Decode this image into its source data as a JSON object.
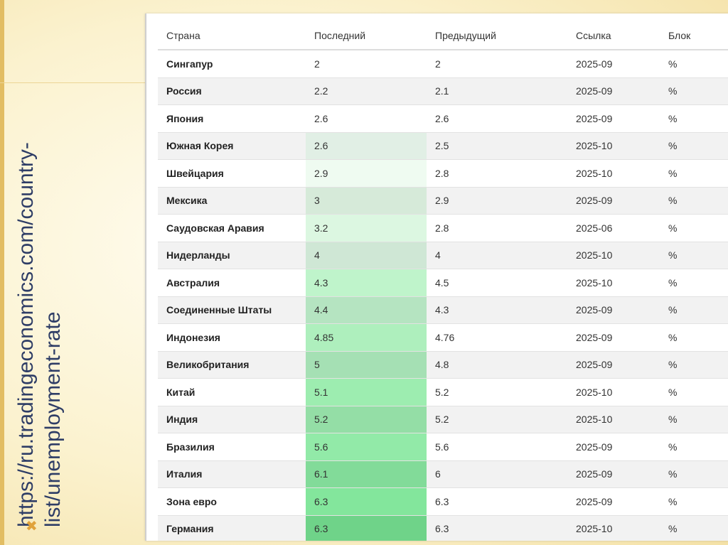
{
  "side_url": "https://ru.tradingeconomics.com/country-list/unemployment-rate",
  "table": {
    "headers": [
      "Страна",
      "Последний",
      "Предыдущий",
      "Ссылка",
      "Блок"
    ],
    "rows": [
      {
        "country": "Сингапур",
        "last": "2",
        "prev": "2",
        "ref": "2025-09",
        "unit": "%",
        "heat": "#ffffff"
      },
      {
        "country": "Россия",
        "last": "2.2",
        "prev": "2.1",
        "ref": "2025-09",
        "unit": "%",
        "heat": "#f2f2f2"
      },
      {
        "country": "Япония",
        "last": "2.6",
        "prev": "2.6",
        "ref": "2025-09",
        "unit": "%",
        "heat": "#ffffff"
      },
      {
        "country": "Южная Корея",
        "last": "2.6",
        "prev": "2.5",
        "ref": "2025-10",
        "unit": "%",
        "heat": "#e1efe5"
      },
      {
        "country": "Швейцария",
        "last": "2.9",
        "prev": "2.8",
        "ref": "2025-10",
        "unit": "%",
        "heat": "#effbf1"
      },
      {
        "country": "Мексика",
        "last": "3",
        "prev": "2.9",
        "ref": "2025-09",
        "unit": "%",
        "heat": "#d6ead9"
      },
      {
        "country": "Саудовская Аравия",
        "last": "3.2",
        "prev": "2.8",
        "ref": "2025-06",
        "unit": "%",
        "heat": "#dcf7e1"
      },
      {
        "country": "Нидерланды",
        "last": "4",
        "prev": "4",
        "ref": "2025-10",
        "unit": "%",
        "heat": "#cfe7d5"
      },
      {
        "country": "Австралия",
        "last": "4.3",
        "prev": "4.5",
        "ref": "2025-10",
        "unit": "%",
        "heat": "#bff4cb"
      },
      {
        "country": "Соединенные Штаты",
        "last": "4.4",
        "prev": "4.3",
        "ref": "2025-09",
        "unit": "%",
        "heat": "#b5e4c1"
      },
      {
        "country": "Индонезия",
        "last": "4.85",
        "prev": "4.76",
        "ref": "2025-09",
        "unit": "%",
        "heat": "#aeefbd"
      },
      {
        "country": "Великобритания",
        "last": "5",
        "prev": "4.8",
        "ref": "2025-09",
        "unit": "%",
        "heat": "#a5e0b4"
      },
      {
        "country": "Китай",
        "last": "5.1",
        "prev": "5.2",
        "ref": "2025-10",
        "unit": "%",
        "heat": "#9dedb0"
      },
      {
        "country": "Индия",
        "last": "5.2",
        "prev": "5.2",
        "ref": "2025-10",
        "unit": "%",
        "heat": "#94dea6"
      },
      {
        "country": "Бразилия",
        "last": "5.6",
        "prev": "5.6",
        "ref": "2025-09",
        "unit": "%",
        "heat": "#92eaa8"
      },
      {
        "country": "Италия",
        "last": "6.1",
        "prev": "6",
        "ref": "2025-09",
        "unit": "%",
        "heat": "#82db99"
      },
      {
        "country": "Зона евро",
        "last": "6.3",
        "prev": "6.3",
        "ref": "2025-09",
        "unit": "%",
        "heat": "#83e69c"
      },
      {
        "country": "Германия",
        "last": "6.3",
        "prev": "6.3",
        "ref": "2025-10",
        "unit": "%",
        "heat": "#6fd389"
      }
    ]
  }
}
